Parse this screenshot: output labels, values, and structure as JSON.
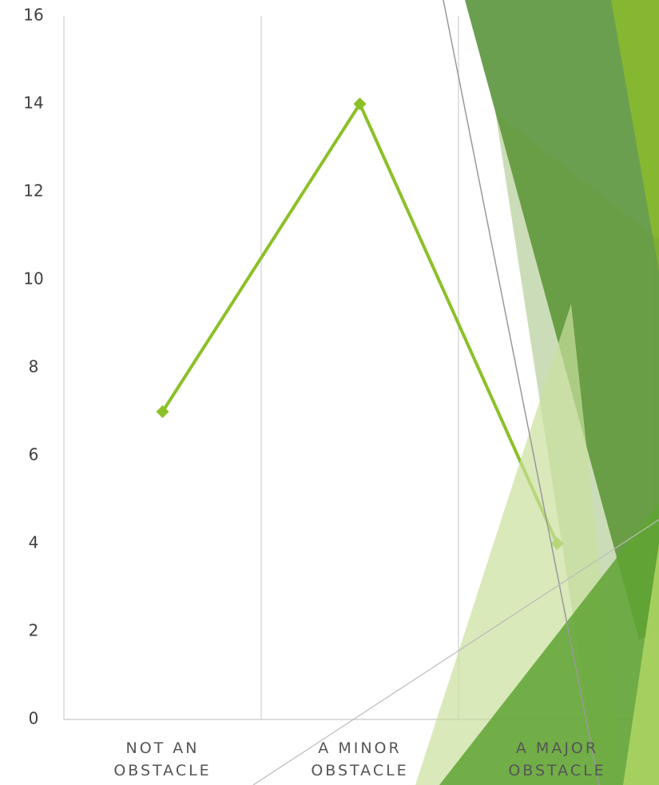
{
  "chart_data": {
    "type": "line",
    "categories": [
      "NOT AN OBSTACLE",
      "A MINOR OBSTACLE",
      "A MAJOR OBSTACLE"
    ],
    "values": [
      7,
      14,
      4
    ],
    "color": "#8cc028",
    "ylim": [
      0,
      16
    ],
    "yticks": [
      0,
      2,
      4,
      6,
      8,
      10,
      12,
      14,
      16
    ],
    "grid": true
  }
}
